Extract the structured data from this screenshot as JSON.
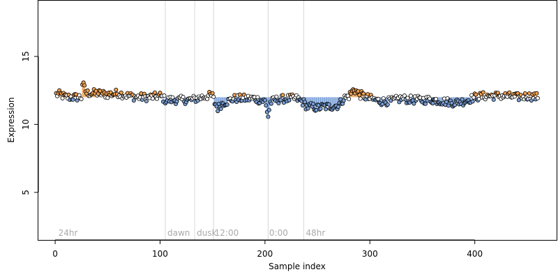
{
  "chart_data": {
    "type": "scatter",
    "title": "",
    "xlabel": "Sample index",
    "ylabel": "Expression",
    "xlim": [
      -16,
      478
    ],
    "ylim": [
      1.5,
      19.1
    ],
    "x_ticks": [
      0,
      100,
      200,
      300,
      400
    ],
    "y_ticks": [
      5,
      10,
      15
    ],
    "grid": false,
    "legend": "none",
    "baseline": 12.0,
    "region_lines": [
      105,
      133,
      151,
      203,
      237
    ],
    "region_labels": [
      {
        "x": 3,
        "text": "24hr"
      },
      {
        "x": 107,
        "text": "dawn"
      },
      {
        "x": 135,
        "text": "dusk"
      },
      {
        "x": 152,
        "text": "12:00"
      },
      {
        "x": 204,
        "text": "0:00"
      },
      {
        "x": 239,
        "text": "48hr"
      }
    ],
    "colors": {
      "high": "#f0a050",
      "low": "#7aa0d8",
      "near": "#ffffff",
      "outline": "#000000",
      "region_line": "#d8d8d8",
      "region_text": "#a9a9a9"
    },
    "series": [
      {
        "anchors_x": [
          0,
          5,
          10,
          15,
          20,
          25,
          26,
          30,
          40,
          50,
          60,
          70,
          80,
          90,
          100,
          105,
          110,
          120,
          130,
          140,
          145,
          150,
          152,
          155,
          160,
          165,
          170,
          180,
          190,
          200,
          202,
          203,
          205,
          210,
          220,
          230,
          237,
          240,
          245,
          250,
          255,
          260,
          270,
          275,
          280,
          285,
          290,
          300,
          310,
          320,
          330,
          340,
          350,
          360,
          370,
          380,
          390,
          400,
          410,
          420,
          430,
          440,
          450,
          460
        ],
        "anchors_y": [
          12.2,
          12.2,
          12.0,
          12.0,
          12.0,
          12.0,
          13.0,
          12.3,
          12.3,
          12.2,
          12.3,
          12.1,
          12.0,
          12.0,
          12.1,
          11.8,
          11.8,
          11.8,
          11.8,
          12.0,
          12.1,
          12.1,
          11.6,
          11.2,
          11.6,
          11.7,
          11.9,
          11.9,
          11.9,
          11.7,
          11.0,
          10.6,
          11.6,
          11.8,
          11.9,
          11.9,
          11.6,
          11.3,
          11.3,
          11.2,
          11.3,
          11.3,
          11.4,
          11.9,
          12.1,
          12.6,
          12.2,
          11.9,
          11.7,
          11.7,
          11.9,
          11.8,
          11.8,
          11.8,
          11.7,
          11.6,
          11.7,
          12.0,
          12.1,
          12.1,
          12.1,
          12.0,
          12.1,
          12.0
        ],
        "amplitude": 0.3,
        "count": 460
      }
    ]
  }
}
